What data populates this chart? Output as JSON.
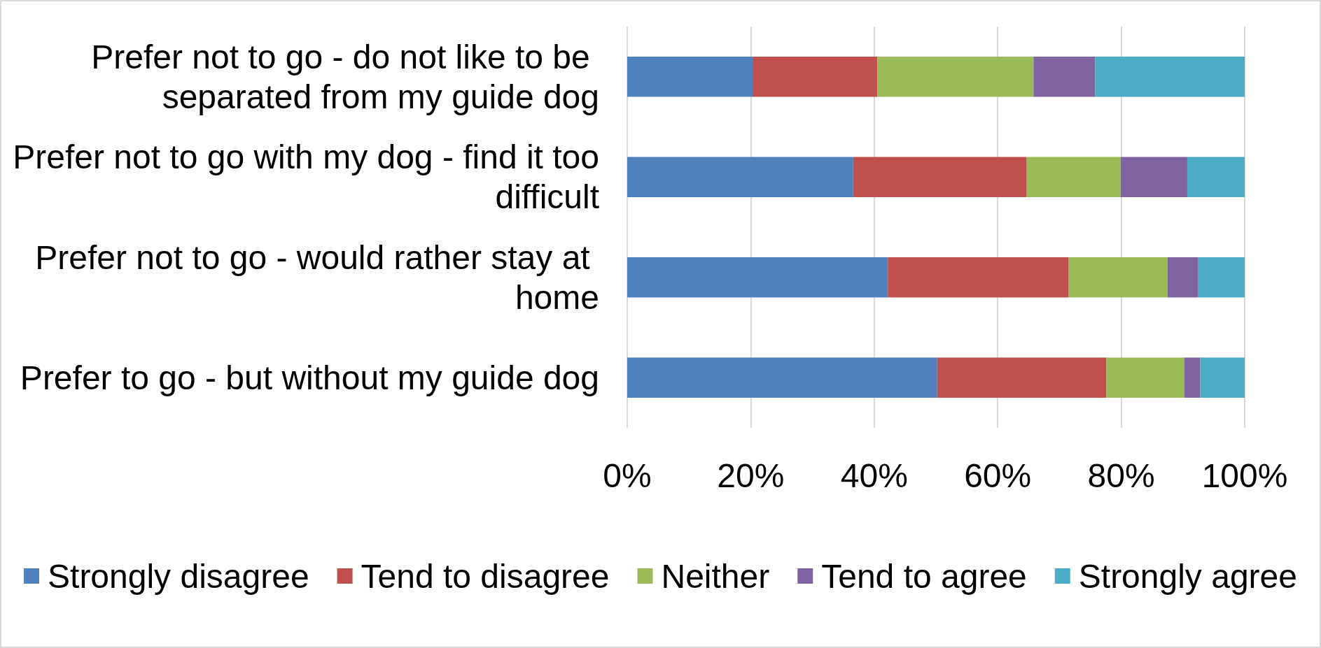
{
  "chart_data": {
    "type": "bar",
    "orientation": "horizontal",
    "stacked": true,
    "categories": [
      "Prefer not to go - do not like to be separated from my guide dog",
      "Prefer not to go with my dog - find it too difficult",
      "Prefer not to go - would rather stay at home",
      "Prefer to go - but without my guide dog"
    ],
    "series": [
      {
        "name": "Strongly disagree",
        "color": "#4f81bd",
        "values": [
          20.3,
          36.6,
          42.2,
          50.2
        ]
      },
      {
        "name": "Tend to disagree",
        "color": "#c0504d",
        "values": [
          20.2,
          28.1,
          29.3,
          27.4
        ]
      },
      {
        "name": "Neither",
        "color": "#9bbb59",
        "values": [
          25.3,
          15.2,
          16.0,
          12.6
        ]
      },
      {
        "name": "Tend to agree",
        "color": "#8064a2",
        "values": [
          10.0,
          10.8,
          4.9,
          2.6
        ]
      },
      {
        "name": "Strongly agree",
        "color": "#4bacc6",
        "values": [
          24.2,
          9.3,
          7.6,
          7.2
        ]
      }
    ],
    "xlim": [
      0,
      100
    ],
    "xticks": [
      {
        "value": 0,
        "label": "0%"
      },
      {
        "value": 20,
        "label": "20%"
      },
      {
        "value": 40,
        "label": "40%"
      },
      {
        "value": 60,
        "label": "60%"
      },
      {
        "value": 80,
        "label": "80%"
      },
      {
        "value": 100,
        "label": "100%"
      }
    ],
    "grid": "x",
    "legend": "bottom"
  }
}
